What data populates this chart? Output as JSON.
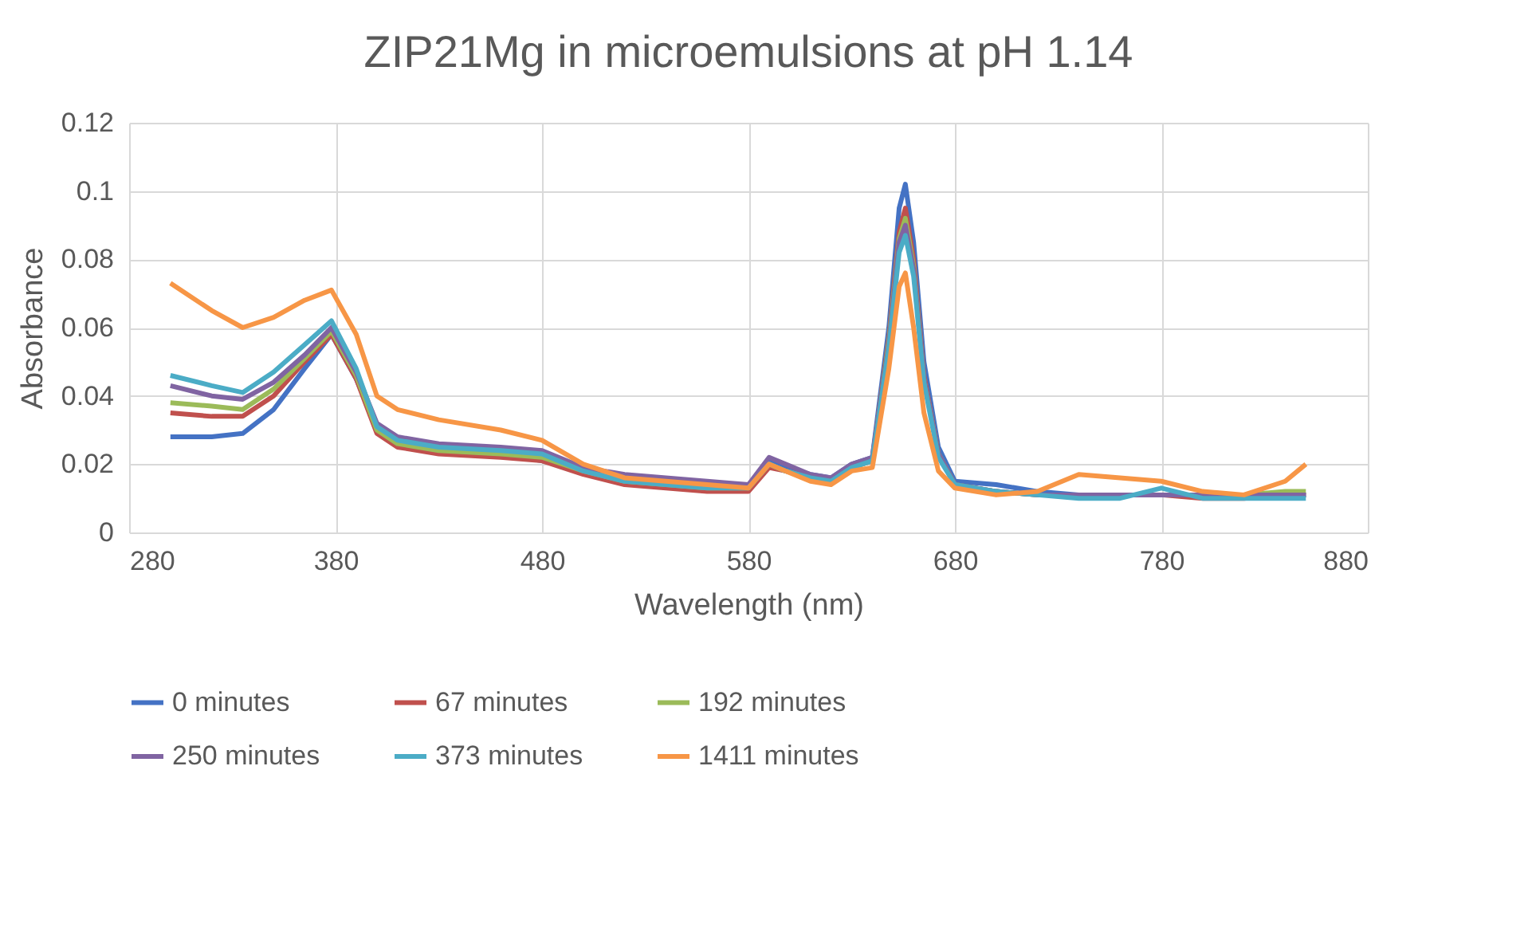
{
  "chart_data": {
    "type": "line",
    "title": "ZIP21Mg in microemulsions at pH 1.14",
    "xlabel": "Wavelength (nm)",
    "ylabel": "Absorbance",
    "x": [
      300,
      320,
      335,
      350,
      365,
      378,
      390,
      400,
      410,
      430,
      460,
      480,
      500,
      520,
      560,
      580,
      590,
      598,
      610,
      620,
      630,
      640,
      648,
      653,
      656,
      660,
      665,
      672,
      680,
      700,
      720,
      740,
      760,
      780,
      800,
      820,
      840,
      850
    ],
    "series": [
      {
        "name": "0 minutes",
        "color": "#4472c4",
        "values": [
          0.028,
          0.028,
          0.029,
          0.036,
          0.048,
          0.058,
          0.045,
          0.031,
          0.026,
          0.024,
          0.023,
          0.021,
          0.018,
          0.015,
          0.013,
          0.013,
          0.021,
          0.019,
          0.017,
          0.016,
          0.02,
          0.022,
          0.06,
          0.095,
          0.102,
          0.085,
          0.05,
          0.025,
          0.015,
          0.014,
          0.012,
          0.011,
          0.011,
          0.011,
          0.011,
          0.011,
          0.011,
          0.011
        ]
      },
      {
        "name": "67 minutes",
        "color": "#c0504d",
        "values": [
          0.035,
          0.034,
          0.034,
          0.04,
          0.05,
          0.058,
          0.045,
          0.029,
          0.025,
          0.023,
          0.022,
          0.021,
          0.017,
          0.014,
          0.012,
          0.012,
          0.019,
          0.018,
          0.016,
          0.015,
          0.019,
          0.021,
          0.057,
          0.088,
          0.095,
          0.08,
          0.046,
          0.023,
          0.014,
          0.012,
          0.011,
          0.011,
          0.011,
          0.011,
          0.01,
          0.01,
          0.011,
          0.011
        ]
      },
      {
        "name": "192 minutes",
        "color": "#9bbb59",
        "values": [
          0.038,
          0.037,
          0.036,
          0.042,
          0.051,
          0.059,
          0.046,
          0.03,
          0.026,
          0.024,
          0.023,
          0.022,
          0.018,
          0.015,
          0.013,
          0.013,
          0.02,
          0.018,
          0.016,
          0.015,
          0.019,
          0.021,
          0.056,
          0.086,
          0.092,
          0.078,
          0.045,
          0.023,
          0.014,
          0.012,
          0.011,
          0.011,
          0.011,
          0.011,
          0.011,
          0.011,
          0.012,
          0.012
        ]
      },
      {
        "name": "250 minutes",
        "color": "#8064a2",
        "values": [
          0.043,
          0.04,
          0.039,
          0.044,
          0.052,
          0.06,
          0.047,
          0.032,
          0.028,
          0.026,
          0.025,
          0.024,
          0.019,
          0.017,
          0.015,
          0.014,
          0.022,
          0.02,
          0.017,
          0.016,
          0.02,
          0.022,
          0.055,
          0.085,
          0.09,
          0.077,
          0.045,
          0.023,
          0.014,
          0.012,
          0.011,
          0.011,
          0.011,
          0.011,
          0.011,
          0.011,
          0.011,
          0.011
        ]
      },
      {
        "name": "373 minutes",
        "color": "#4bacc6",
        "values": [
          0.046,
          0.043,
          0.041,
          0.047,
          0.055,
          0.062,
          0.048,
          0.031,
          0.027,
          0.025,
          0.024,
          0.023,
          0.018,
          0.015,
          0.013,
          0.013,
          0.02,
          0.018,
          0.016,
          0.015,
          0.019,
          0.021,
          0.054,
          0.082,
          0.087,
          0.075,
          0.044,
          0.022,
          0.014,
          0.012,
          0.011,
          0.01,
          0.01,
          0.013,
          0.01,
          0.01,
          0.01,
          0.01
        ]
      },
      {
        "name": "1411 minutes",
        "color": "#f79646",
        "values": [
          0.073,
          0.065,
          0.06,
          0.063,
          0.068,
          0.071,
          0.058,
          0.04,
          0.036,
          0.033,
          0.03,
          0.027,
          0.02,
          0.016,
          0.014,
          0.013,
          0.02,
          0.018,
          0.015,
          0.014,
          0.018,
          0.019,
          0.048,
          0.072,
          0.076,
          0.06,
          0.035,
          0.018,
          0.013,
          0.011,
          0.012,
          0.017,
          0.016,
          0.015,
          0.012,
          0.011,
          0.015,
          0.02
        ]
      }
    ],
    "xlim": [
      280,
      880
    ],
    "xticks": [
      280,
      380,
      480,
      580,
      680,
      780,
      880
    ],
    "ylim": [
      0,
      0.12
    ],
    "yticks": [
      0,
      0.02,
      0.04,
      0.06,
      0.08,
      0.1,
      0.12
    ],
    "grid": true,
    "legend": "bottom",
    "marker": "none",
    "line_style": "solid"
  }
}
